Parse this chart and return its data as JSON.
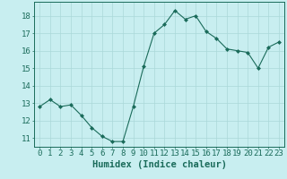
{
  "x": [
    0,
    1,
    2,
    3,
    4,
    5,
    6,
    7,
    8,
    9,
    10,
    11,
    12,
    13,
    14,
    15,
    16,
    17,
    18,
    19,
    20,
    21,
    22,
    23
  ],
  "y": [
    12.8,
    13.2,
    12.8,
    12.9,
    12.3,
    11.6,
    11.1,
    10.8,
    10.8,
    12.8,
    15.1,
    17.0,
    17.5,
    18.3,
    17.8,
    18.0,
    17.1,
    16.7,
    16.1,
    16.0,
    15.9,
    15.0,
    16.2,
    16.5
  ],
  "xlabel": "Humidex (Indice chaleur)",
  "ylim": [
    10.5,
    18.8
  ],
  "xlim": [
    -0.5,
    23.5
  ],
  "yticks": [
    11,
    12,
    13,
    14,
    15,
    16,
    17,
    18
  ],
  "xticks": [
    0,
    1,
    2,
    3,
    4,
    5,
    6,
    7,
    8,
    9,
    10,
    11,
    12,
    13,
    14,
    15,
    16,
    17,
    18,
    19,
    20,
    21,
    22,
    23
  ],
  "line_color": "#1a6b5a",
  "marker_color": "#1a6b5a",
  "bg_color": "#c8eef0",
  "grid_color": "#aad8d8",
  "axis_color": "#1a6b5a",
  "xlabel_fontsize": 7.5,
  "tick_fontsize": 6.5
}
